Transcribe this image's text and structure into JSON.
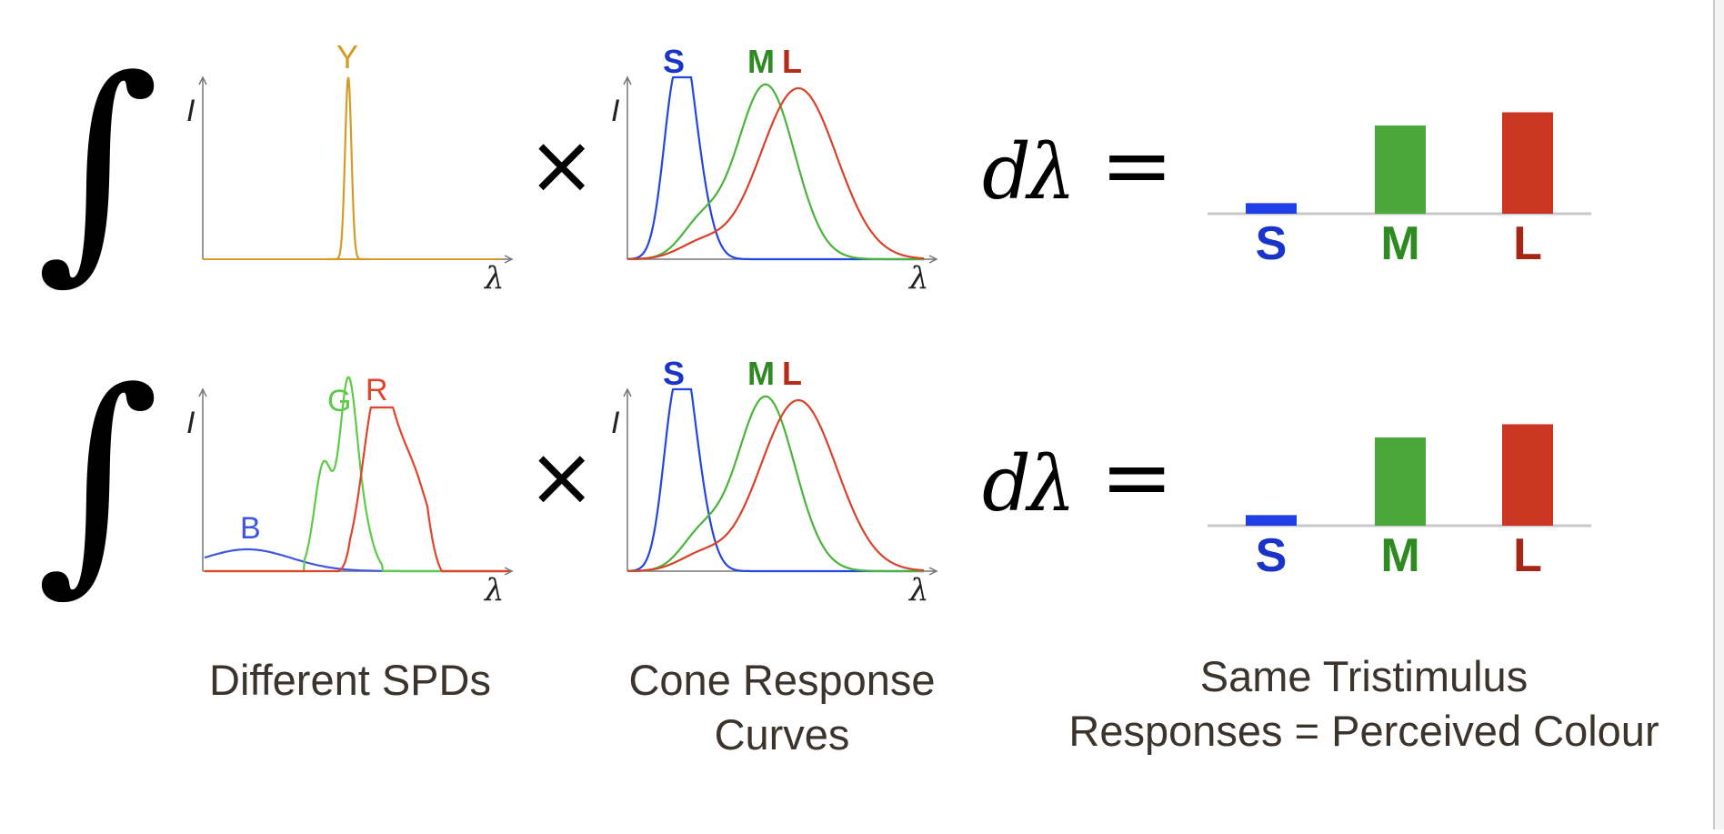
{
  "rows": [
    {
      "spd": {
        "axis_y": "I",
        "axis_x": "λ",
        "curves": [
          {
            "label": "Y",
            "color": "#d49a2a",
            "shape": "narrow-peak"
          }
        ]
      }
    },
    {
      "spd": {
        "axis_y": "I",
        "axis_x": "λ",
        "curves": [
          {
            "label": "B",
            "color": "#3f57e0",
            "shape": "low-broad"
          },
          {
            "label": "G",
            "color": "#5fc94a",
            "shape": "double-peak"
          },
          {
            "label": "R",
            "color": "#e2442b",
            "shape": "broad-peak"
          }
        ]
      }
    }
  ],
  "cones": {
    "axis_y": "I",
    "axis_x": "λ",
    "curves": [
      {
        "label": "S",
        "color": "#2346e0",
        "label_color": "#1a33c9"
      },
      {
        "label": "M",
        "color": "#4ab43a",
        "label_color": "#2f8a22"
      },
      {
        "label": "L",
        "color": "#d8422a",
        "label_color": "#b52a18"
      }
    ]
  },
  "operators": {
    "integral": "∫",
    "times": "×",
    "d": "d",
    "lambda": "λ",
    "equals": "="
  },
  "tristimulus": {
    "bars": [
      {
        "label": "S",
        "value": 0.12,
        "color": "#1f3ee6",
        "label_color": "#1a33c9"
      },
      {
        "label": "M",
        "value": 1.0,
        "color": "#4aa83a",
        "label_color": "#2f8a22"
      },
      {
        "label": "L",
        "value": 1.15,
        "color": "#c93622",
        "label_color": "#a62616"
      }
    ]
  },
  "captions": {
    "spd": "Different SPDs",
    "cone_line1": "Cone Response",
    "cone_line2": "Curves",
    "tri_line1": "Same Tristimulus",
    "tri_line2": "Responses = Perceived Colour"
  },
  "colors": {
    "axis": "#777777",
    "text": "#3a342c",
    "baseline": "#c8c8c8"
  }
}
